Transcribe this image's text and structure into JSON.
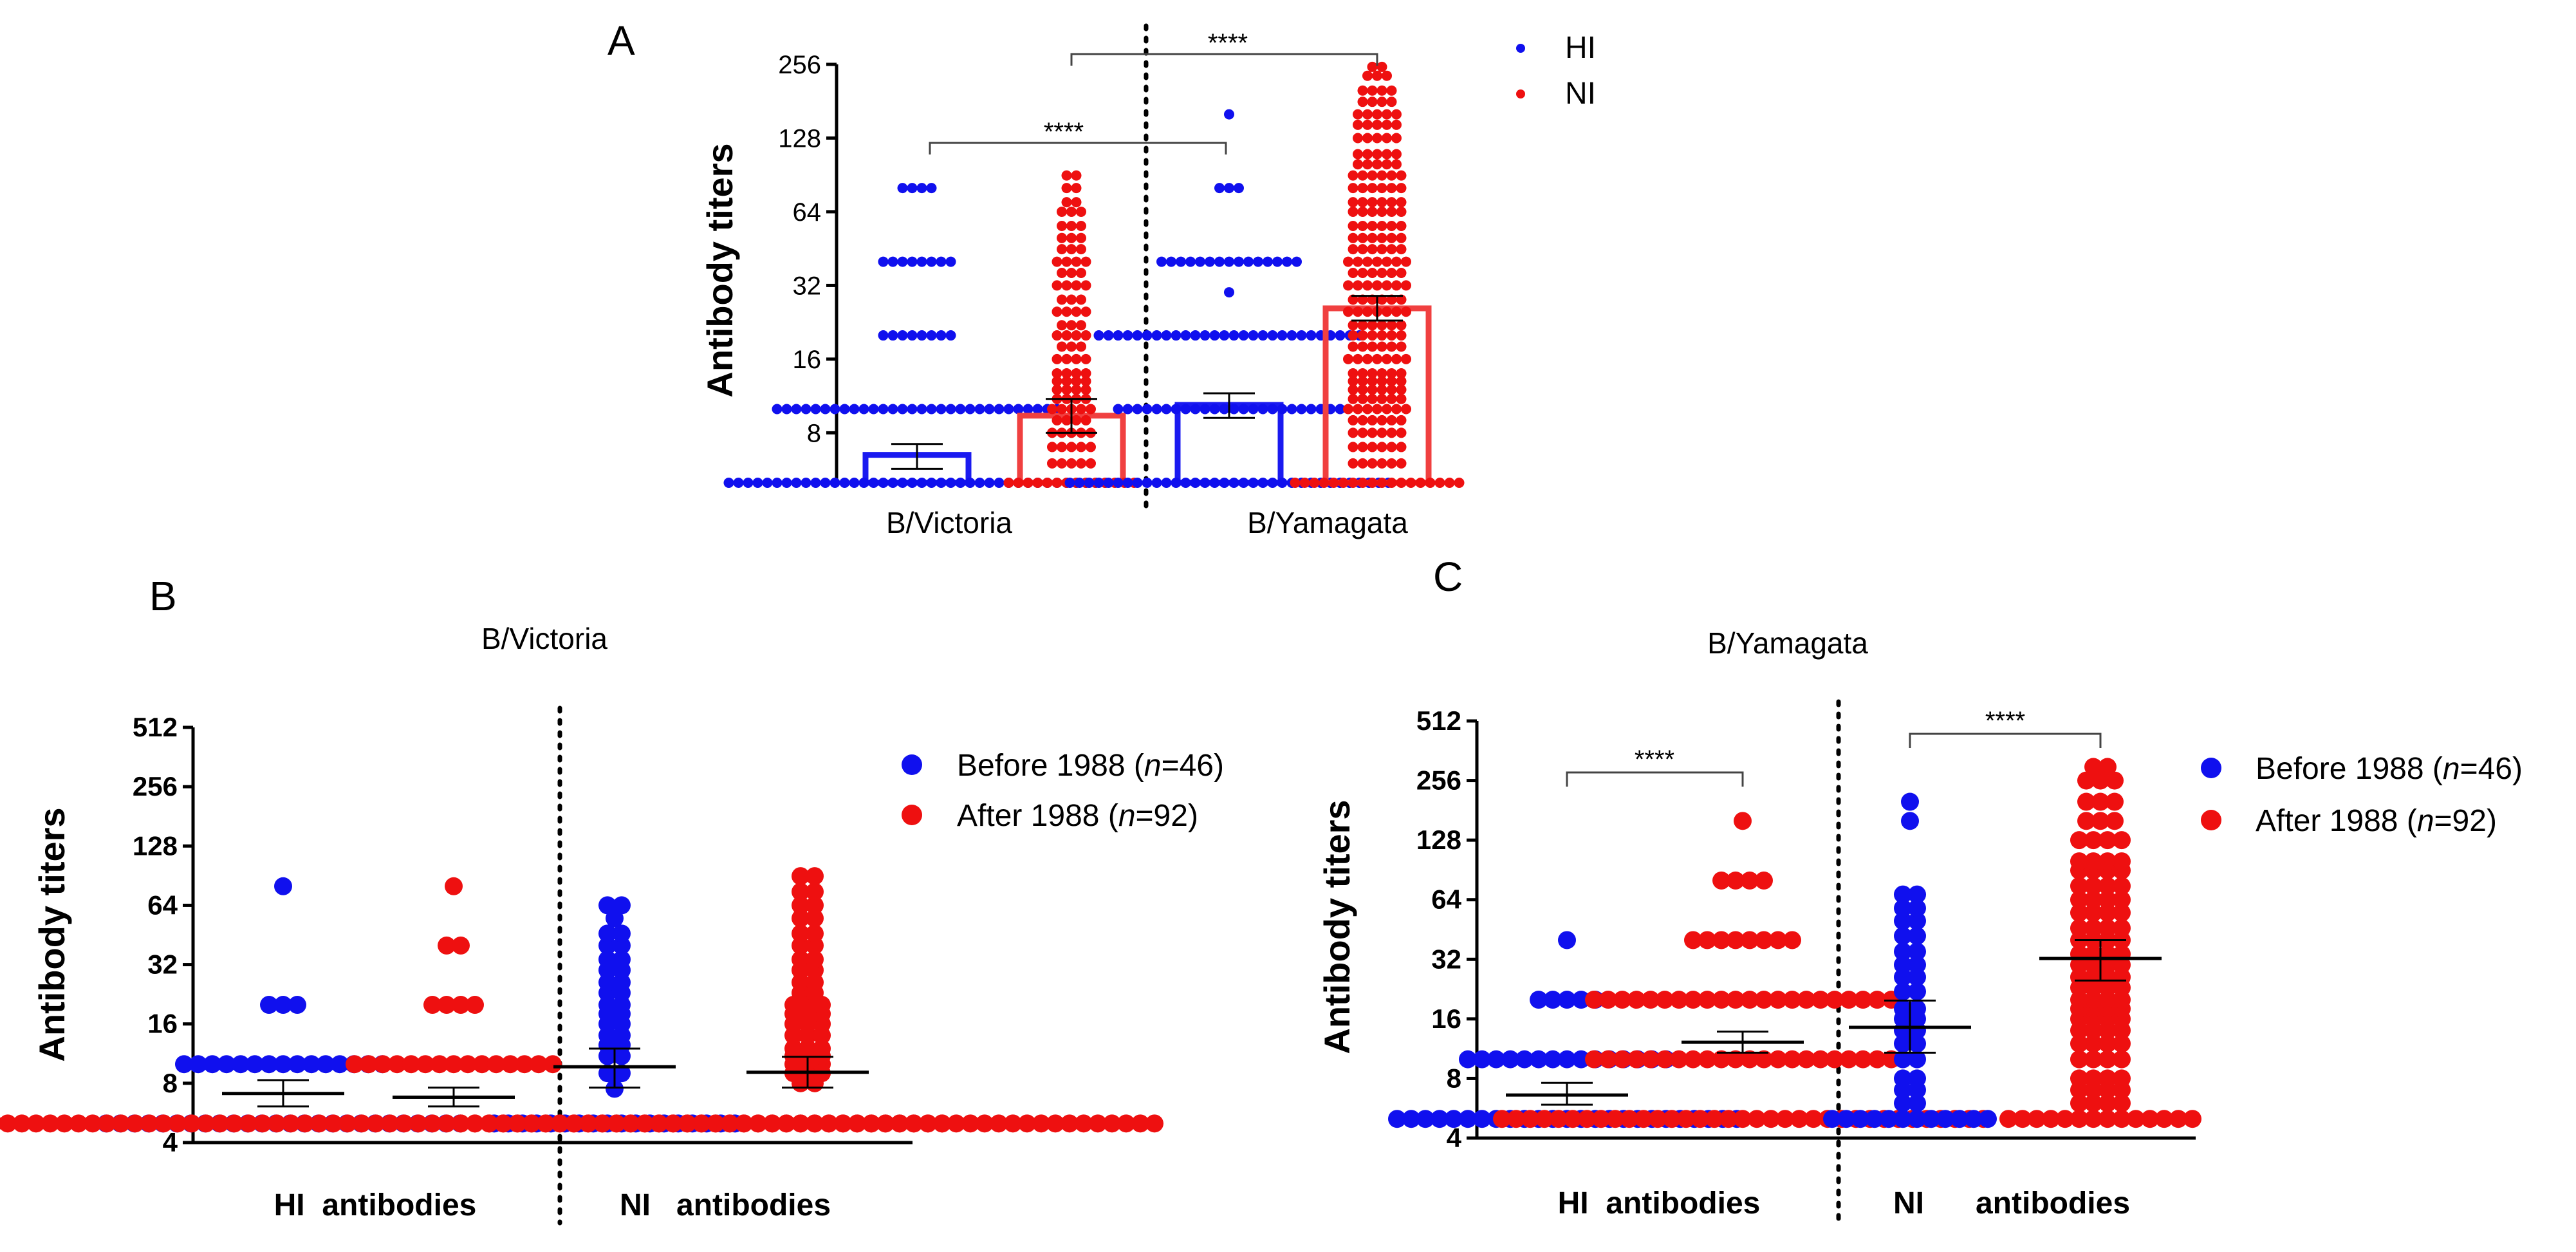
{
  "colors": {
    "hi": "#1010ee",
    "ni": "#ee1010",
    "before": "#1010ee",
    "after": "#ee1010",
    "bar_hi": "#1a1af0",
    "bar_ni": "#f04040"
  },
  "legend_a": [
    {
      "label": "HI",
      "series": "hi"
    },
    {
      "label": "NI",
      "series": "ni"
    }
  ],
  "legend_bc": {
    "before": {
      "prefix": "Before 1988 (",
      "n": "n",
      "suffix": "=46)"
    },
    "after": {
      "prefix": "After 1988 (",
      "n": "n",
      "suffix": "=92)"
    }
  },
  "chart_data": [
    {
      "id": "A",
      "panel_label": "A",
      "type": "bar",
      "title": "",
      "ylabel": "Antibody titers",
      "yscale": "log2",
      "ylim": [
        5,
        256
      ],
      "yticks": [
        8,
        16,
        32,
        64,
        128,
        256
      ],
      "ytick_labels": [
        "8",
        "16",
        "32",
        "64",
        "128",
        "256"
      ],
      "categories": [
        "B/Victoria",
        "B/Yamagata"
      ],
      "groups": [
        {
          "category": "B/Victoria",
          "series": "HI",
          "mean": 6.5,
          "err_low": 5.7,
          "err_high": 7.2,
          "dist": [
            [
              5,
              40
            ],
            [
              10,
              30
            ],
            [
              20,
              8
            ],
            [
              40,
              8
            ],
            [
              80,
              4
            ]
          ]
        },
        {
          "category": "B/Victoria",
          "series": "NI",
          "mean": 9.4,
          "err_low": 8.0,
          "err_high": 11.0,
          "dist": [
            [
              5,
              14
            ],
            [
              6,
              5
            ],
            [
              7,
              5
            ],
            [
              8,
              5
            ],
            [
              9,
              4
            ],
            [
              10,
              5
            ],
            [
              11,
              4
            ],
            [
              12,
              4
            ],
            [
              13,
              4
            ],
            [
              14,
              4
            ],
            [
              16,
              4
            ],
            [
              18,
              3
            ],
            [
              20,
              4
            ],
            [
              22,
              3
            ],
            [
              25,
              4
            ],
            [
              28,
              3
            ],
            [
              32,
              4
            ],
            [
              36,
              3
            ],
            [
              40,
              4
            ],
            [
              45,
              3
            ],
            [
              50,
              3
            ],
            [
              56,
              3
            ],
            [
              64,
              3
            ],
            [
              70,
              2
            ],
            [
              80,
              2
            ],
            [
              90,
              2
            ]
          ]
        },
        {
          "category": "B/Yamagata",
          "series": "HI",
          "mean": 10.4,
          "err_low": 9.2,
          "err_high": 11.6,
          "dist": [
            [
              5,
              34
            ],
            [
              10,
              24
            ],
            [
              20,
              28
            ],
            [
              30,
              1
            ],
            [
              40,
              15
            ],
            [
              80,
              3
            ],
            [
              160,
              1
            ]
          ]
        },
        {
          "category": "B/Yamagata",
          "series": "NI",
          "mean": 25.8,
          "err_low": 23.0,
          "err_high": 29.0,
          "dist": [
            [
              5,
              18
            ],
            [
              6,
              6
            ],
            [
              7,
              6
            ],
            [
              8,
              6
            ],
            [
              9,
              6
            ],
            [
              10,
              7
            ],
            [
              11,
              6
            ],
            [
              12,
              6
            ],
            [
              13,
              6
            ],
            [
              14,
              6
            ],
            [
              16,
              7
            ],
            [
              18,
              6
            ],
            [
              20,
              6
            ],
            [
              22,
              6
            ],
            [
              25,
              7
            ],
            [
              28,
              6
            ],
            [
              32,
              7
            ],
            [
              36,
              6
            ],
            [
              40,
              7
            ],
            [
              45,
              6
            ],
            [
              50,
              6
            ],
            [
              56,
              6
            ],
            [
              64,
              6
            ],
            [
              70,
              6
            ],
            [
              80,
              6
            ],
            [
              90,
              6
            ],
            [
              100,
              5
            ],
            [
              110,
              5
            ],
            [
              128,
              5
            ],
            [
              145,
              5
            ],
            [
              160,
              5
            ],
            [
              180,
              4
            ],
            [
              200,
              4
            ],
            [
              230,
              3
            ],
            [
              250,
              2
            ]
          ]
        }
      ],
      "annotations": [
        {
          "text": "****",
          "between": "Victoria HI vs Yamagata HI"
        },
        {
          "text": "****",
          "between": "Victoria NI vs Yamagata NI"
        }
      ]
    },
    {
      "id": "B",
      "panel_label": "B",
      "type": "scatter",
      "title": "B/Victoria",
      "ylabel": "Antibody titers",
      "yscale": "log2",
      "ylim": [
        4,
        512
      ],
      "yticks": [
        4,
        8,
        16,
        32,
        64,
        128,
        256,
        512
      ],
      "ytick_labels": [
        "4",
        "8",
        "16",
        "32",
        "64",
        "128",
        "256",
        "512"
      ],
      "categories": [
        "HI  antibodies",
        "NI   antibodies"
      ],
      "groups": [
        {
          "category": "HI",
          "series": "Before 1988",
          "mean": 7.1,
          "err_low": 6.1,
          "err_high": 8.3,
          "dist": [
            [
              5,
              26
            ],
            [
              10,
              15
            ],
            [
              20,
              3
            ],
            [
              80,
              1
            ]
          ]
        },
        {
          "category": "HI",
          "series": "After 1988",
          "mean": 6.8,
          "err_low": 6.1,
          "err_high": 7.6,
          "dist": [
            [
              5,
              70
            ],
            [
              10,
              15
            ],
            [
              20,
              4
            ],
            [
              40,
              2
            ],
            [
              80,
              1
            ]
          ]
        },
        {
          "category": "NI",
          "series": "Before 1988",
          "mean": 9.7,
          "err_low": 7.6,
          "err_high": 12.0,
          "dist": [
            [
              5,
              18
            ],
            [
              7.5,
              1
            ],
            [
              9,
              2
            ],
            [
              11,
              2
            ],
            [
              12.5,
              2
            ],
            [
              14,
              2
            ],
            [
              16,
              2
            ],
            [
              18,
              2
            ],
            [
              20,
              2
            ],
            [
              23,
              2
            ],
            [
              26,
              2
            ],
            [
              30,
              2
            ],
            [
              34,
              2
            ],
            [
              40,
              2
            ],
            [
              46,
              2
            ],
            [
              55,
              1
            ],
            [
              64,
              2
            ]
          ]
        },
        {
          "category": "NI",
          "series": "After 1988",
          "mean": 9.1,
          "err_low": 7.6,
          "err_high": 10.9,
          "dist": [
            [
              5,
              50
            ],
            [
              8,
              2
            ],
            [
              9,
              3
            ],
            [
              10,
              3
            ],
            [
              11,
              3
            ],
            [
              12,
              3
            ],
            [
              14,
              3
            ],
            [
              16,
              3
            ],
            [
              18,
              3
            ],
            [
              20,
              3
            ],
            [
              23,
              2
            ],
            [
              26,
              2
            ],
            [
              30,
              2
            ],
            [
              34,
              2
            ],
            [
              40,
              2
            ],
            [
              46,
              2
            ],
            [
              55,
              2
            ],
            [
              64,
              2
            ],
            [
              75,
              2
            ],
            [
              90,
              2
            ]
          ]
        }
      ],
      "annotations": []
    },
    {
      "id": "C",
      "panel_label": "C",
      "type": "scatter",
      "title": "B/Yamagata",
      "ylabel": "Antibody titers",
      "yscale": "log2",
      "ylim": [
        4,
        512
      ],
      "yticks": [
        4,
        8,
        16,
        32,
        64,
        128,
        256,
        512
      ],
      "ytick_labels": [
        "4",
        "8",
        "16",
        "32",
        "64",
        "128",
        "256",
        "512"
      ],
      "categories": [
        "HI  antibodies",
        "NI      antibodies"
      ],
      "groups": [
        {
          "category": "HI",
          "series": "Before 1988",
          "mean": 6.6,
          "err_low": 5.9,
          "err_high": 7.6,
          "dist": [
            [
              5,
              25
            ],
            [
              10,
              15
            ],
            [
              20,
              5
            ],
            [
              40,
              1
            ]
          ]
        },
        {
          "category": "HI",
          "series": "After 1988",
          "mean": 12.2,
          "err_low": 10.8,
          "err_high": 13.8,
          "dist": [
            [
              5,
              35
            ],
            [
              10,
              22
            ],
            [
              20,
              22
            ],
            [
              40,
              8
            ],
            [
              80,
              4
            ],
            [
              160,
              1
            ]
          ]
        },
        {
          "category": "NI",
          "series": "Before 1988",
          "mean": 14.5,
          "err_low": 10.8,
          "err_high": 19.8,
          "dist": [
            [
              5,
              12
            ],
            [
              6,
              2
            ],
            [
              7,
              2
            ],
            [
              8,
              2
            ],
            [
              10,
              2
            ],
            [
              12,
              2
            ],
            [
              14,
              2
            ],
            [
              16,
              2
            ],
            [
              18,
              2
            ],
            [
              22,
              2
            ],
            [
              26,
              2
            ],
            [
              30,
              2
            ],
            [
              35,
              2
            ],
            [
              42,
              2
            ],
            [
              50,
              2
            ],
            [
              58,
              2
            ],
            [
              68,
              2
            ],
            [
              160,
              1
            ],
            [
              200,
              1
            ]
          ]
        },
        {
          "category": "NI",
          "series": "After 1988",
          "mean": 32.3,
          "err_low": 25.0,
          "err_high": 40.0,
          "dist": [
            [
              5,
              14
            ],
            [
              6,
              4
            ],
            [
              7,
              4
            ],
            [
              8,
              4
            ],
            [
              10,
              4
            ],
            [
              12,
              4
            ],
            [
              14,
              4
            ],
            [
              16,
              4
            ],
            [
              18,
              4
            ],
            [
              20,
              4
            ],
            [
              23,
              4
            ],
            [
              26,
              4
            ],
            [
              30,
              4
            ],
            [
              34,
              4
            ],
            [
              40,
              4
            ],
            [
              46,
              4
            ],
            [
              55,
              4
            ],
            [
              64,
              4
            ],
            [
              75,
              4
            ],
            [
              90,
              4
            ],
            [
              100,
              4
            ],
            [
              128,
              4
            ],
            [
              160,
              3
            ],
            [
              200,
              3
            ],
            [
              256,
              3
            ],
            [
              300,
              2
            ]
          ]
        }
      ],
      "annotations": [
        {
          "text": "****",
          "between": "HI Before vs HI After"
        },
        {
          "text": "****",
          "between": "NI Before vs NI After"
        }
      ]
    }
  ]
}
